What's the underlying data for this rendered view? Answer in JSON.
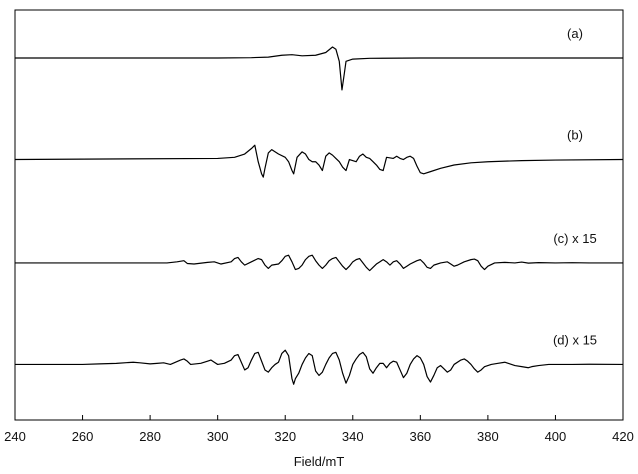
{
  "chart_data": {
    "type": "line",
    "title": "",
    "xlabel": "Field/mT",
    "ylabel": "",
    "xlim": [
      240,
      420
    ],
    "x_ticks": [
      240,
      260,
      280,
      300,
      320,
      340,
      360,
      380,
      400,
      420
    ],
    "y_ticks_shown": false,
    "grid": false,
    "legend": "none",
    "traces": [
      {
        "label": "(a)",
        "offset": 0,
        "scale": 1,
        "points": [
          [
            240,
            0
          ],
          [
            300,
            0
          ],
          [
            310,
            0.03
          ],
          [
            315,
            0.08
          ],
          [
            319,
            0.25
          ],
          [
            322,
            0.3
          ],
          [
            325,
            0.2
          ],
          [
            329,
            0.25
          ],
          [
            332,
            0.5
          ],
          [
            334,
            1.0
          ],
          [
            335,
            0.8
          ],
          [
            336,
            -0.3
          ],
          [
            336.8,
            -2.9
          ],
          [
            337.5,
            -1.4
          ],
          [
            338,
            -0.3
          ],
          [
            340,
            -0.1
          ],
          [
            345,
            -0.03
          ],
          [
            360,
            0
          ],
          [
            420,
            0
          ]
        ]
      },
      {
        "label": "(b)",
        "offset": -5.4,
        "scale": 1,
        "points": [
          [
            240,
            0
          ],
          [
            300,
            0.1
          ],
          [
            305,
            0.2
          ],
          [
            308,
            0.5
          ],
          [
            310,
            1.0
          ],
          [
            311,
            1.3
          ],
          [
            312,
            -0.2
          ],
          [
            313,
            -1.3
          ],
          [
            313.5,
            -1.6
          ],
          [
            314,
            -0.8
          ],
          [
            315,
            0.6
          ],
          [
            316,
            0.9
          ],
          [
            318,
            0.5
          ],
          [
            320,
            0.2
          ],
          [
            321,
            -0.2
          ],
          [
            322,
            -1.0
          ],
          [
            322.5,
            -1.3
          ],
          [
            323.5,
            0.2
          ],
          [
            325,
            0.7
          ],
          [
            326,
            0.5
          ],
          [
            327,
            0.0
          ],
          [
            328,
            -0.2
          ],
          [
            329,
            -0.2
          ],
          [
            330,
            -0.5
          ],
          [
            331,
            -1.0
          ],
          [
            332,
            0.3
          ],
          [
            333,
            0.6
          ],
          [
            334,
            0.4
          ],
          [
            335,
            0.1
          ],
          [
            336,
            -0.2
          ],
          [
            337,
            -0.7
          ],
          [
            338,
            -1.0
          ],
          [
            339,
            0.0
          ],
          [
            341,
            -0.2
          ],
          [
            342,
            0.3
          ],
          [
            343,
            0.5
          ],
          [
            344,
            0.2
          ],
          [
            345,
            0.1
          ],
          [
            346,
            -0.2
          ],
          [
            347,
            -0.5
          ],
          [
            348,
            -0.9
          ],
          [
            349,
            -1.0
          ],
          [
            350,
            0.2
          ],
          [
            352,
            0.1
          ],
          [
            353,
            0.3
          ],
          [
            354,
            0.1
          ],
          [
            355,
            0.0
          ],
          [
            356,
            0.2
          ],
          [
            357,
            0.3
          ],
          [
            358,
            0.1
          ],
          [
            359,
            -0.6
          ],
          [
            360,
            -1.2
          ],
          [
            361,
            -1.3
          ],
          [
            363,
            -1.1
          ],
          [
            366,
            -0.8
          ],
          [
            370,
            -0.5
          ],
          [
            375,
            -0.3
          ],
          [
            380,
            -0.2
          ],
          [
            390,
            -0.1
          ],
          [
            400,
            -0.05
          ],
          [
            420,
            0
          ]
        ]
      },
      {
        "label": "(c) x 15",
        "offset": -10.9,
        "scale": 1,
        "points": [
          [
            240,
            0
          ],
          [
            250,
            0
          ],
          [
            260,
            0
          ],
          [
            270,
            0
          ],
          [
            280,
            0
          ],
          [
            285,
            0
          ],
          [
            288,
            0.1
          ],
          [
            290,
            0.2
          ],
          [
            291,
            -0.05
          ],
          [
            293,
            -0.1
          ],
          [
            297,
            0.05
          ],
          [
            299,
            0.1
          ],
          [
            301,
            -0.1
          ],
          [
            304,
            0.1
          ],
          [
            305,
            0.4
          ],
          [
            306,
            0.5
          ],
          [
            307,
            0.1
          ],
          [
            308,
            -0.2
          ],
          [
            310,
            0.1
          ],
          [
            312,
            0.4
          ],
          [
            313,
            0.3
          ],
          [
            314,
            -0.2
          ],
          [
            315,
            -0.5
          ],
          [
            316,
            -0.2
          ],
          [
            318,
            -0.1
          ],
          [
            319,
            0.2
          ],
          [
            320,
            0.6
          ],
          [
            321,
            0.7
          ],
          [
            322,
            0.1
          ],
          [
            323,
            -0.6
          ],
          [
            324,
            -0.5
          ],
          [
            325,
            -0.2
          ],
          [
            326,
            0.3
          ],
          [
            327,
            0.6
          ],
          [
            328,
            0.7
          ],
          [
            329,
            0.2
          ],
          [
            330,
            -0.2
          ],
          [
            331,
            -0.5
          ],
          [
            332,
            -0.2
          ],
          [
            333,
            0.2
          ],
          [
            334,
            0.4
          ],
          [
            335,
            0.5
          ],
          [
            336,
            0.1
          ],
          [
            337,
            -0.3
          ],
          [
            338,
            -0.6
          ],
          [
            339,
            -0.3
          ],
          [
            340,
            0.1
          ],
          [
            341,
            0.3
          ],
          [
            342,
            0.4
          ],
          [
            343,
            0.0
          ],
          [
            344,
            -0.4
          ],
          [
            345,
            -0.7
          ],
          [
            346,
            -0.4
          ],
          [
            347,
            -0.1
          ],
          [
            348,
            0.1
          ],
          [
            349,
            0.3
          ],
          [
            350,
            0.1
          ],
          [
            351,
            -0.2
          ],
          [
            352,
            0.1
          ],
          [
            353,
            0.2
          ],
          [
            354,
            -0.1
          ],
          [
            355,
            -0.5
          ],
          [
            356,
            -0.3
          ],
          [
            357,
            -0.1
          ],
          [
            359,
            0.2
          ],
          [
            360,
            0.3
          ],
          [
            361,
            0.0
          ],
          [
            362,
            -0.4
          ],
          [
            363,
            -0.5
          ],
          [
            364,
            -0.2
          ],
          [
            366,
            0.0
          ],
          [
            368,
            0.1
          ],
          [
            369,
            -0.1
          ],
          [
            370,
            -0.3
          ],
          [
            371,
            -0.2
          ],
          [
            373,
            0.1
          ],
          [
            375,
            0.3
          ],
          [
            376,
            0.35
          ],
          [
            377,
            0.2
          ],
          [
            378,
            -0.3
          ],
          [
            379,
            -0.6
          ],
          [
            380,
            -0.3
          ],
          [
            382,
            0.0
          ],
          [
            385,
            0.05
          ],
          [
            388,
            0.0
          ],
          [
            390,
            0.08
          ],
          [
            392,
            -0.02
          ],
          [
            395,
            0.03
          ],
          [
            400,
            0.0
          ],
          [
            405,
            0.02
          ],
          [
            410,
            0.0
          ],
          [
            420,
            0
          ]
        ]
      },
      {
        "label": "(d) x 15",
        "offset": -16.3,
        "scale": 1,
        "points": [
          [
            240,
            0
          ],
          [
            260,
            0
          ],
          [
            265,
            0.05
          ],
          [
            270,
            0.1
          ],
          [
            275,
            0.2
          ],
          [
            277,
            0.15
          ],
          [
            280,
            0.05
          ],
          [
            282,
            0.1
          ],
          [
            284,
            0.15
          ],
          [
            286,
            0.0
          ],
          [
            289,
            0.4
          ],
          [
            290,
            0.5
          ],
          [
            291,
            0.3
          ],
          [
            292,
            0.0
          ],
          [
            295,
            0.1
          ],
          [
            297,
            0.3
          ],
          [
            298,
            0.4
          ],
          [
            299,
            0.2
          ],
          [
            300,
            0.0
          ],
          [
            302,
            0.1
          ],
          [
            304,
            0.4
          ],
          [
            305,
            0.8
          ],
          [
            306,
            0.9
          ],
          [
            307,
            0.2
          ],
          [
            308,
            -0.5
          ],
          [
            309,
            -0.3
          ],
          [
            310,
            0.4
          ],
          [
            311,
            1.0
          ],
          [
            312,
            1.1
          ],
          [
            313,
            0.3
          ],
          [
            314,
            -0.5
          ],
          [
            315,
            -0.7
          ],
          [
            316,
            -0.3
          ],
          [
            317,
            0.0
          ],
          [
            318,
            0.2
          ],
          [
            319,
            1.0
          ],
          [
            320,
            1.3
          ],
          [
            321,
            0.8
          ],
          [
            322,
            -1.3
          ],
          [
            322.5,
            -1.8
          ],
          [
            323,
            -1.3
          ],
          [
            324,
            -0.8
          ],
          [
            325,
            0.0
          ],
          [
            326,
            0.6
          ],
          [
            327,
            1.0
          ],
          [
            328,
            0.8
          ],
          [
            329,
            -0.6
          ],
          [
            330,
            -1.0
          ],
          [
            331,
            -0.7
          ],
          [
            332,
            0.0
          ],
          [
            333,
            0.6
          ],
          [
            334,
            1.0
          ],
          [
            335,
            1.1
          ],
          [
            336,
            0.4
          ],
          [
            337,
            -0.8
          ],
          [
            338,
            -1.7
          ],
          [
            339,
            -1.0
          ],
          [
            340,
            0.0
          ],
          [
            341,
            0.5
          ],
          [
            342,
            0.9
          ],
          [
            343,
            1.1
          ],
          [
            344,
            0.7
          ],
          [
            345,
            -0.4
          ],
          [
            346,
            -0.8
          ],
          [
            347,
            -0.3
          ],
          [
            348,
            0.1
          ],
          [
            349,
            0.1
          ],
          [
            350,
            -0.3
          ],
          [
            351,
            0.1
          ],
          [
            352,
            0.3
          ],
          [
            353,
            0.2
          ],
          [
            354,
            -0.5
          ],
          [
            355,
            -1.2
          ],
          [
            356,
            -0.8
          ],
          [
            357,
            0.0
          ],
          [
            358,
            0.5
          ],
          [
            359,
            0.8
          ],
          [
            360,
            0.6
          ],
          [
            361,
            0.0
          ],
          [
            362,
            -1.1
          ],
          [
            363,
            -1.6
          ],
          [
            364,
            -1.0
          ],
          [
            365,
            -0.3
          ],
          [
            366,
            -0.1
          ],
          [
            367,
            -0.4
          ],
          [
            368,
            -0.7
          ],
          [
            369,
            -0.5
          ],
          [
            370,
            0.0
          ],
          [
            372,
            0.4
          ],
          [
            373,
            0.5
          ],
          [
            374,
            0.3
          ],
          [
            375,
            0.0
          ],
          [
            376,
            -0.4
          ],
          [
            377,
            -0.7
          ],
          [
            378,
            -0.5
          ],
          [
            379,
            -0.2
          ],
          [
            381,
            0.0
          ],
          [
            383,
            0.1
          ],
          [
            385,
            0.2
          ],
          [
            386,
            0.1
          ],
          [
            388,
            -0.1
          ],
          [
            390,
            -0.2
          ],
          [
            392,
            -0.3
          ],
          [
            393,
            -0.2
          ],
          [
            395,
            -0.1
          ],
          [
            398,
            0.0
          ],
          [
            400,
            0.0
          ],
          [
            405,
            0.0
          ],
          [
            410,
            0.02
          ],
          [
            420,
            0
          ]
        ]
      }
    ]
  }
}
